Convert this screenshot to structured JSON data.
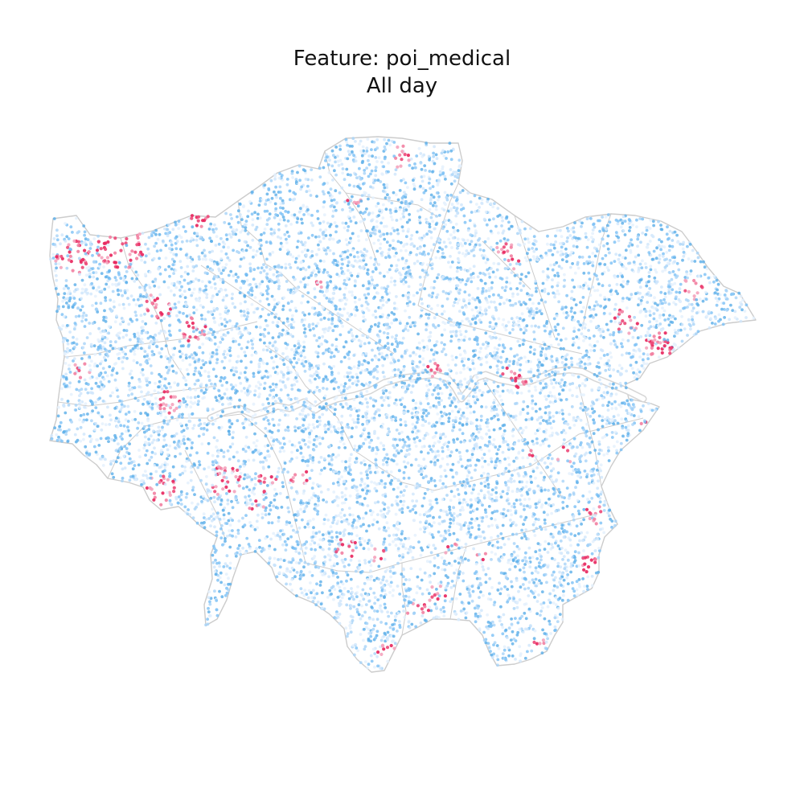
{
  "title": "Feature: poi_medical",
  "subtitle": "All day",
  "map": {
    "region": "Greater London",
    "feature": "poi_medical",
    "period": "All day",
    "basemap": "borough boundaries",
    "colors": {
      "boundary": "#cccccc",
      "low_value": "#7cc0f5",
      "light_value": "#cfe6fb",
      "mid_value": "#5aaee8",
      "high_value": "#e8245c",
      "high_value_light": "#f27fa1",
      "background": "#ffffff"
    }
  }
}
